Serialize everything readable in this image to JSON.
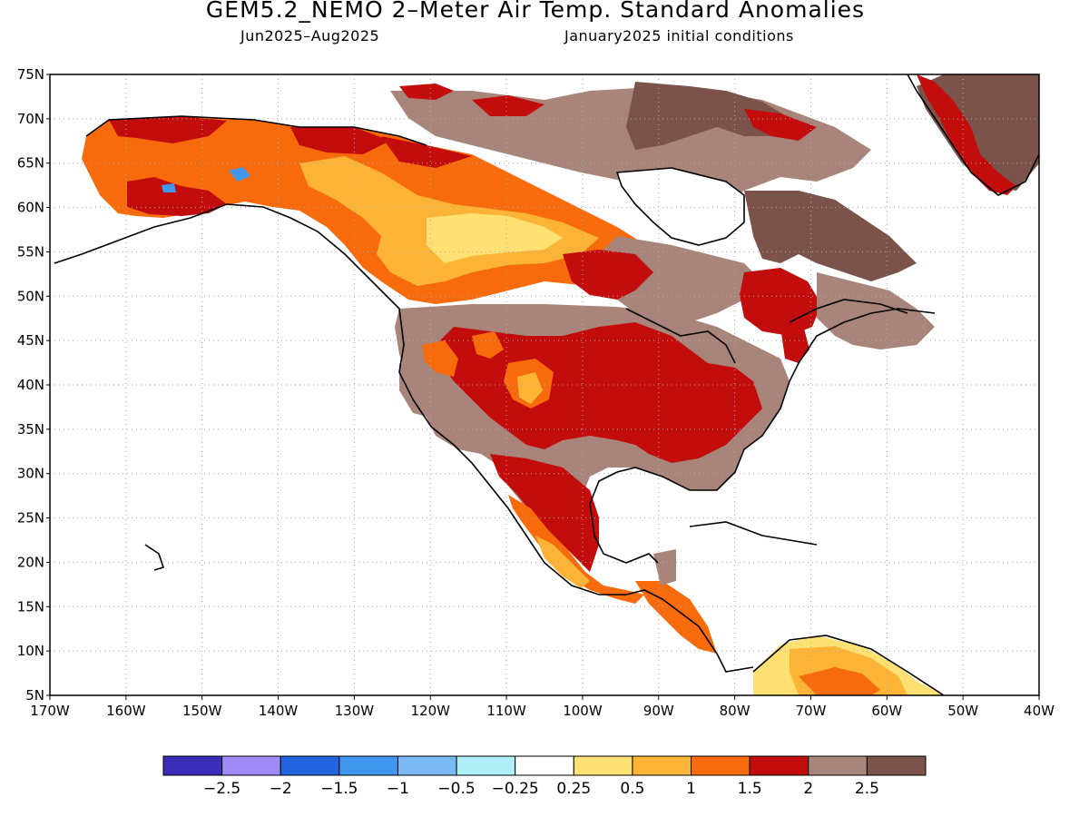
{
  "title": "GEM5.2_NEMO 2–Meter Air Temp. Standard Anomalies",
  "period": "Jun2025–Aug2025",
  "initial_conditions": "January2025 initial conditions",
  "lat_labels": [
    "75N",
    "70N",
    "65N",
    "60N",
    "55N",
    "50N",
    "45N",
    "40N",
    "35N",
    "30N",
    "25N",
    "20N",
    "15N",
    "10N",
    "5N"
  ],
  "lon_labels": [
    "170W",
    "160W",
    "150W",
    "140W",
    "130W",
    "120W",
    "110W",
    "100W",
    "90W",
    "80W",
    "70W",
    "60W",
    "50W",
    "40W"
  ],
  "legend": {
    "colors": [
      "#3b2db8",
      "#a08cf8",
      "#2166e0",
      "#3f97f0",
      "#7ab9f5",
      "#aeeff8",
      "#ffffff",
      "#ffe073",
      "#fcb336",
      "#f76b0d",
      "#c30c0c",
      "#a9847a",
      "#7b534a"
    ],
    "labels": [
      "−2.5",
      "−2",
      "−1.5",
      "−1",
      "−0.5",
      "−0.25",
      "0.25",
      "0.5",
      "1",
      "1.5",
      "2",
      "2.5"
    ]
  },
  "colors": {
    "brown_dark": "#7b534a",
    "brown": "#a9847a",
    "red": "#c30c0c",
    "orange_dark": "#f76b0d",
    "orange": "#fcb336",
    "yellow": "#ffe073",
    "blue": "#3f97f0",
    "light_blue": "#7ab9f5"
  }
}
